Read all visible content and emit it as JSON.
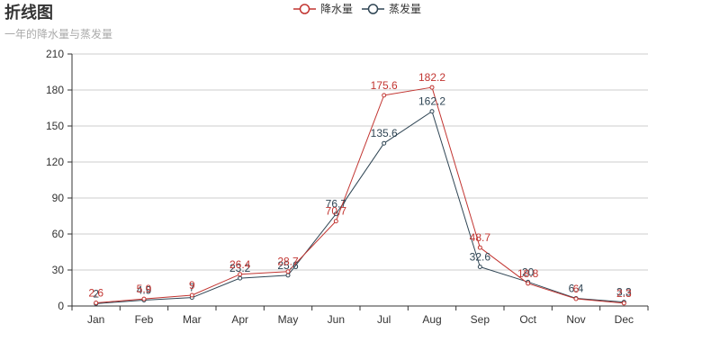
{
  "title": "折线图",
  "subtitle": "一年的降水量与蒸发量",
  "legend": {
    "position": "top-center",
    "items": [
      {
        "name": "降水量",
        "color": "#c23531"
      },
      {
        "name": "蒸发量",
        "color": "#2f4554"
      }
    ]
  },
  "chart_data": {
    "type": "line",
    "title": "折线图",
    "subtitle": "一年的降水量与蒸发量",
    "categories": [
      "Jan",
      "Feb",
      "Mar",
      "Apr",
      "May",
      "Jun",
      "Jul",
      "Aug",
      "Sep",
      "Oct",
      "Nov",
      "Dec"
    ],
    "y_ticks": [
      0,
      30,
      60,
      90,
      120,
      150,
      180,
      210
    ],
    "ylim": [
      0,
      210
    ],
    "grid": {
      "horizontal": true,
      "vertical": false
    },
    "legend_position": "top-center",
    "series": [
      {
        "name": "降水量",
        "color": "#c23531",
        "values": [
          2.6,
          5.9,
          9,
          26.4,
          28.7,
          70.7,
          175.6,
          182.2,
          48.7,
          18.8,
          6,
          2.3
        ]
      },
      {
        "name": "蒸发量",
        "color": "#2f4554",
        "values": [
          2,
          4.9,
          7,
          23.2,
          25.6,
          76.7,
          135.6,
          162.2,
          32.6,
          20,
          6.4,
          3.3
        ]
      }
    ]
  }
}
